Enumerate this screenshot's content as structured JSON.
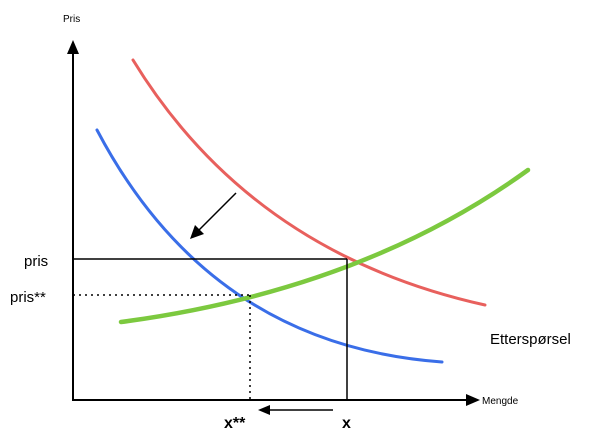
{
  "labels": {
    "y_axis": "Pris",
    "x_axis": "Mengde",
    "price": "pris",
    "price_new": "pris**",
    "quantity": "x",
    "quantity_new": "x**",
    "demand": "Etterspørsel"
  },
  "colors": {
    "original_demand": "#e8605d",
    "shifted_demand": "#3a6ee8",
    "supply": "#7cc93f",
    "axes": "#000000"
  }
}
